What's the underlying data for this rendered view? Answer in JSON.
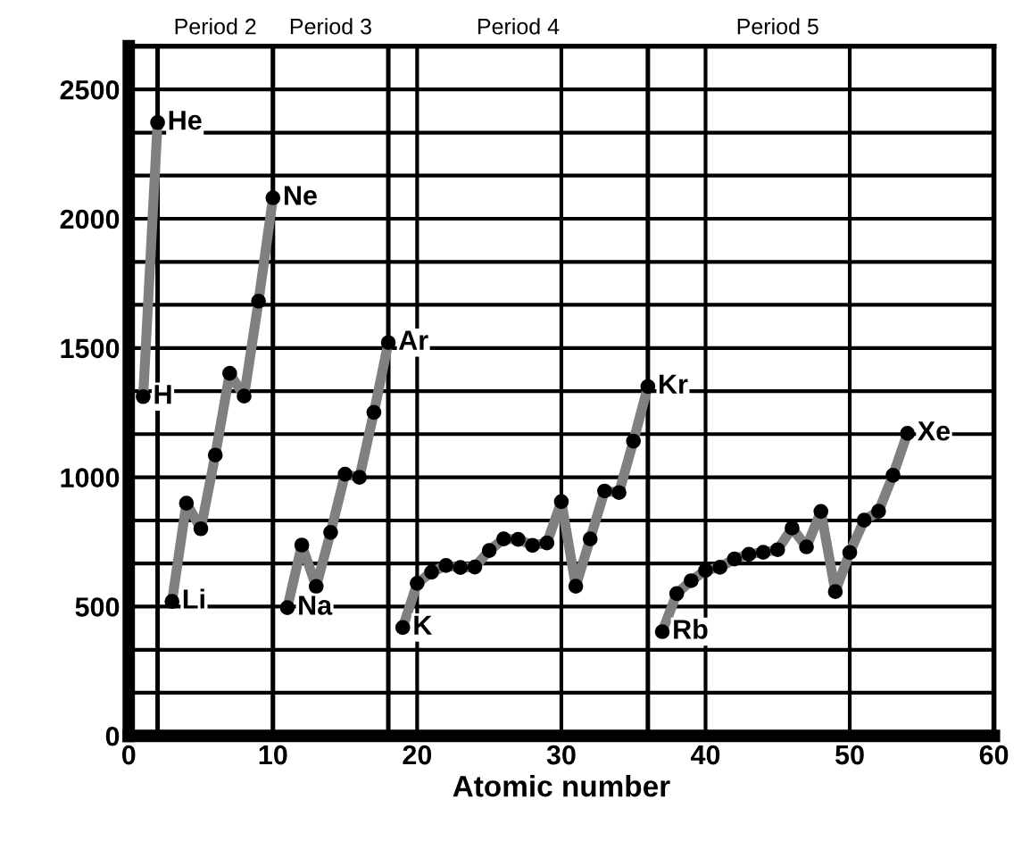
{
  "chart_data": {
    "type": "line",
    "xlabel": "Atomic number",
    "series": [
      {
        "color": "#808080",
        "x": [
          1,
          2
        ],
        "values": [
          1312,
          2372
        ]
      },
      {
        "color": "#808080",
        "x": [
          3,
          4,
          5,
          6,
          7,
          8,
          9,
          10
        ],
        "values": [
          520,
          900,
          801,
          1086,
          1402,
          1314,
          1681,
          2081
        ]
      },
      {
        "color": "#808080",
        "x": [
          11,
          12,
          13,
          14,
          15,
          16,
          17,
          18
        ],
        "values": [
          496,
          738,
          578,
          787,
          1012,
          1000,
          1251,
          1521
        ]
      },
      {
        "color": "#808080",
        "x": [
          19,
          20,
          21,
          22,
          23,
          24,
          25,
          26,
          27,
          28,
          29,
          30,
          31,
          32,
          33,
          34,
          35,
          36
        ],
        "values": [
          419,
          590,
          633,
          659,
          651,
          653,
          717,
          762,
          760,
          737,
          746,
          906,
          579,
          762,
          947,
          941,
          1140,
          1351
        ]
      },
      {
        "color": "#808080",
        "x": [
          37,
          38,
          39,
          40,
          41,
          42,
          43,
          44,
          45,
          46,
          47,
          48,
          49,
          50,
          51,
          52,
          53,
          54
        ],
        "values": [
          403,
          550,
          600,
          640,
          652,
          684,
          702,
          710,
          720,
          804,
          731,
          868,
          558,
          709,
          834,
          869,
          1008,
          1170
        ]
      }
    ],
    "xlim": [
      0,
      60
    ],
    "xticks": [
      0,
      10,
      20,
      30,
      40,
      50,
      60
    ],
    "ylim": [
      0,
      2667
    ],
    "yticks": [
      0,
      {
        "value": 167,
        "label": null
      },
      {
        "value": 333,
        "label": null
      },
      500,
      {
        "value": 667,
        "label": null
      },
      {
        "value": 833,
        "label": null
      },
      1000,
      {
        "value": 1167,
        "label": null
      },
      {
        "value": 1333,
        "label": null
      },
      1500,
      {
        "value": 1667,
        "label": null
      },
      {
        "value": 1833,
        "label": null
      },
      2000,
      {
        "value": 2167,
        "label": null
      },
      {
        "value": 2333,
        "label": null
      },
      2500
    ],
    "grid": true,
    "marker": "circle",
    "line_style": "solid",
    "ref_lines": [
      {
        "axis": "x",
        "value": 2,
        "color": "#000000"
      },
      {
        "axis": "x",
        "value": 10,
        "color": "#000000"
      },
      {
        "axis": "x",
        "value": 18,
        "color": "#000000"
      },
      {
        "axis": "x",
        "value": 36,
        "color": "#000000"
      }
    ],
    "annotations": [
      "Period 2",
      "Period 3",
      "Period 4",
      "Period 5",
      {
        "text": "H",
        "x": 1,
        "y": 1312
      },
      {
        "text": "He",
        "x": 2,
        "y": 2372
      },
      {
        "text": "Li",
        "x": 3,
        "y": 520
      },
      {
        "text": "Ne",
        "x": 10,
        "y": 2081
      },
      {
        "text": "Na",
        "x": 11,
        "y": 496
      },
      {
        "text": "Ar",
        "x": 18,
        "y": 1521
      },
      {
        "text": "K",
        "x": 19,
        "y": 419
      },
      {
        "text": "Kr",
        "x": 36,
        "y": 1351
      },
      {
        "text": "Rb",
        "x": 37,
        "y": 403
      },
      {
        "text": "Xe",
        "x": 54,
        "y": 1170
      }
    ]
  }
}
